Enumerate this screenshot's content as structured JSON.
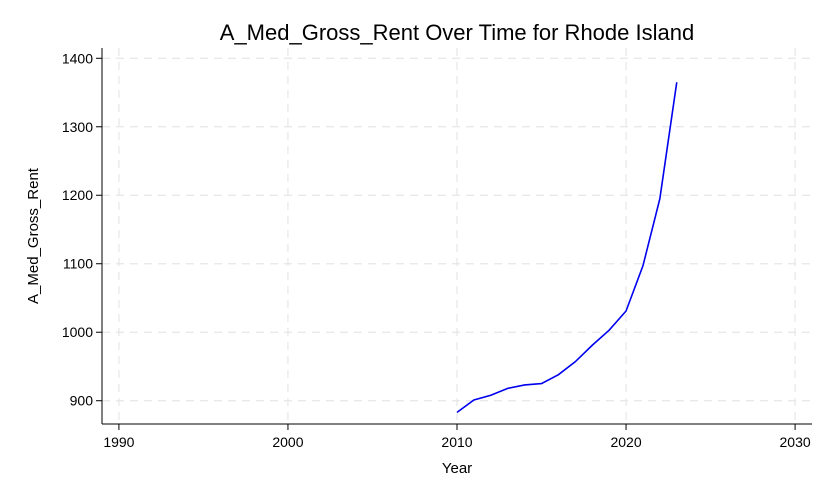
{
  "chart_data": {
    "type": "line",
    "title": "A_Med_Gross_Rent Over Time for Rhode Island",
    "xlabel": "Year",
    "ylabel": "A_Med_Gross_Rent",
    "xlim": [
      1989,
      2031
    ],
    "ylim": [
      866,
      1415
    ],
    "xticks": [
      1990,
      2000,
      2010,
      2020,
      2030
    ],
    "yticks": [
      900,
      1000,
      1100,
      1200,
      1300,
      1400
    ],
    "grid": true,
    "line_color": "#0000ee",
    "series": [
      {
        "x": [
          2010,
          2011,
          2012,
          2013,
          2014,
          2015,
          2016,
          2017,
          2018,
          2019,
          2020,
          2021,
          2022,
          2023
        ],
        "y": [
          883,
          901,
          908,
          918,
          923,
          925,
          938,
          957,
          981,
          1003,
          1031,
          1097,
          1195,
          1365
        ]
      }
    ]
  }
}
